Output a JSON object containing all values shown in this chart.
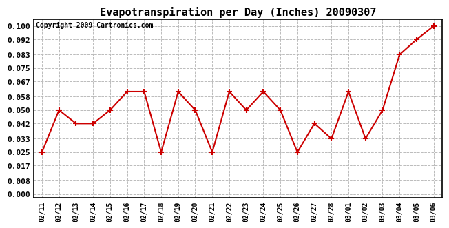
{
  "title": "Evapotranspiration per Day (Inches) 20090307",
  "copyright": "Copyright 2009 Cartronics.com",
  "dates": [
    "02/11",
    "02/12",
    "02/13",
    "02/14",
    "02/15",
    "02/16",
    "02/17",
    "02/18",
    "02/19",
    "02/20",
    "02/21",
    "02/22",
    "02/23",
    "02/24",
    "02/25",
    "02/26",
    "02/27",
    "02/28",
    "03/01",
    "03/02",
    "03/03",
    "03/04",
    "03/05",
    "03/06"
  ],
  "values": [
    0.025,
    0.05,
    0.042,
    0.042,
    0.05,
    0.061,
    0.061,
    0.025,
    0.061,
    0.05,
    0.025,
    0.061,
    0.05,
    0.061,
    0.05,
    0.025,
    0.042,
    0.033,
    0.061,
    0.033,
    0.05,
    0.083,
    0.092,
    0.1
  ],
  "line_color": "#cc0000",
  "marker": "+",
  "marker_size": 6,
  "line_width": 1.5,
  "bg_color": "#ffffff",
  "plot_bg_color": "#ffffff",
  "grid_color": "#bbbbbb",
  "yticks": [
    0.0,
    0.008,
    0.017,
    0.025,
    0.033,
    0.042,
    0.05,
    0.058,
    0.067,
    0.075,
    0.083,
    0.092,
    0.1
  ],
  "ylim": [
    -0.002,
    0.104
  ],
  "title_fontsize": 11,
  "copyright_fontsize": 7,
  "xtick_fontsize": 7,
  "ytick_fontsize": 8
}
